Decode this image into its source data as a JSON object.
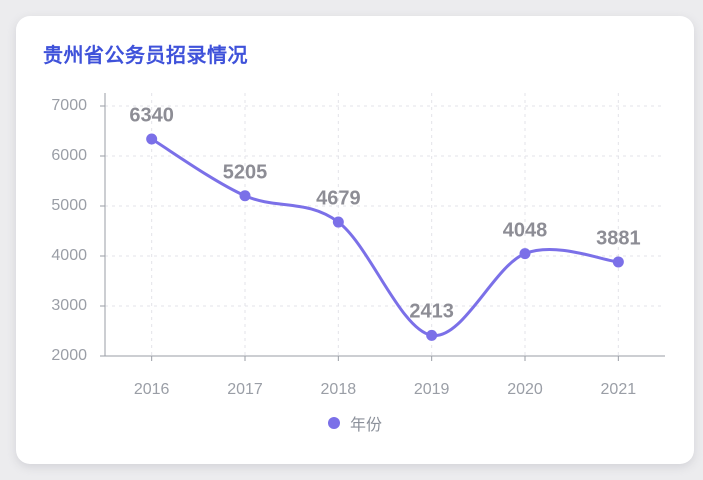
{
  "title": "贵州省公务员招录情况",
  "chart_data": {
    "type": "line",
    "categories": [
      "2016",
      "2017",
      "2018",
      "2019",
      "2020",
      "2021"
    ],
    "series": [
      {
        "name": "年份",
        "values": [
          6340,
          5205,
          4679,
          2413,
          4048,
          3881
        ]
      }
    ],
    "title": "贵州省公务员招录情况",
    "xlabel": "",
    "ylabel": "",
    "ylim": [
      2000,
      7000
    ],
    "yticks": [
      2000,
      3000,
      4000,
      5000,
      6000,
      7000
    ],
    "grid": true,
    "grid_style": "dashed",
    "smooth": true,
    "legend_position": "bottom"
  },
  "legend": {
    "label": "年份"
  },
  "colors": {
    "accent": "#7b70e8",
    "title": "#3f52da",
    "data_label": "#8d8d95",
    "axis_label": "#9a9ea6",
    "axis_line": "#9a9ea6",
    "grid_line": "#e3e3e9",
    "card_bg": "#ffffff",
    "page_bg": "#ececee"
  }
}
